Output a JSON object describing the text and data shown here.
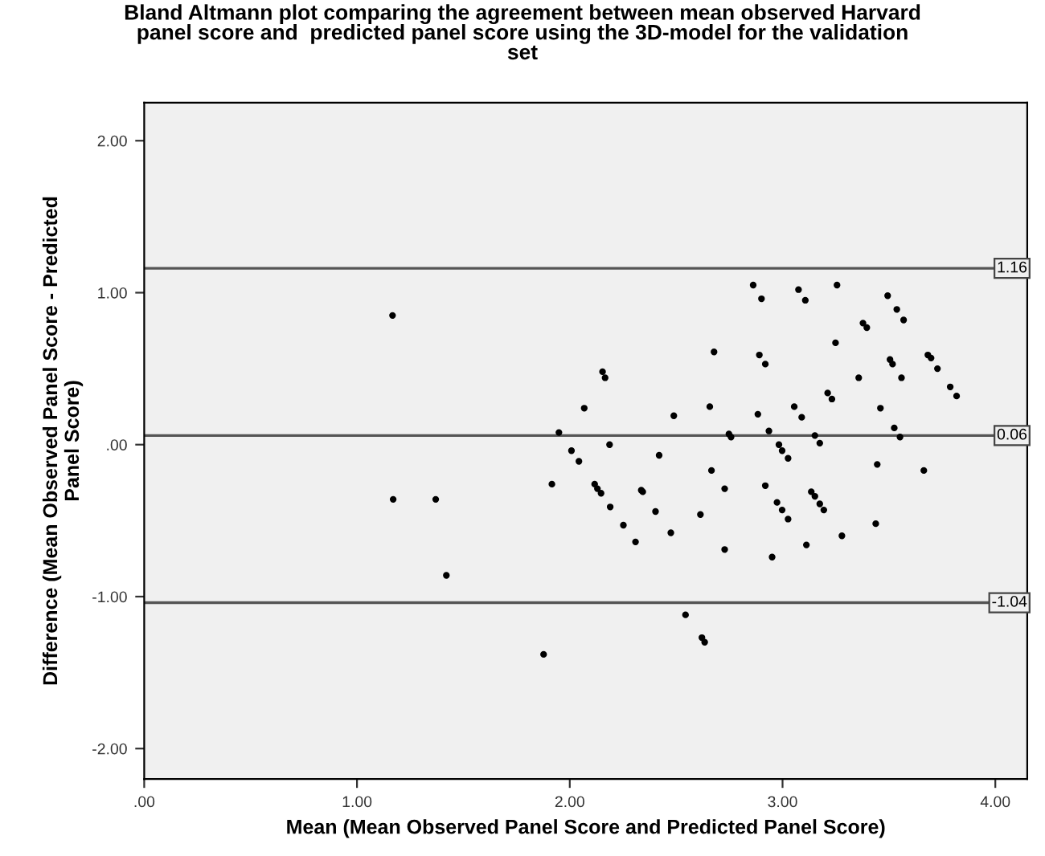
{
  "chart_data": {
    "type": "scatter",
    "title": "Bland Altmann plot comparing the agreement between mean observed Harvard\npanel score and  predicted panel score using the 3D-model for the validation\nset",
    "xlabel": "Mean (Mean Observed Panel Score and Predicted Panel Score)",
    "ylabel": "Difference (Mean Observed Panel Score - Predicted\nPanel Score)",
    "series": [
      {
        "color": "#000000",
        "x": [
          1.167,
          1.17,
          1.37,
          1.42,
          2.862,
          2.901,
          3.075,
          3.107,
          3.256,
          3.494,
          3.537,
          3.569,
          3.378,
          3.396,
          3.249,
          2.678,
          2.891,
          2.919,
          2.154,
          2.166,
          3.358,
          3.505,
          3.517,
          3.559,
          3.683,
          3.698,
          3.728,
          3.788,
          3.818,
          3.212,
          3.232,
          2.068,
          2.489,
          2.658,
          2.884,
          3.055,
          3.09,
          3.46,
          1.949,
          2.748,
          2.758,
          2.936,
          3.152,
          3.175,
          3.525,
          3.552,
          2.187,
          2.008,
          2.043,
          2.42,
          2.983,
          2.998,
          3.026,
          3.445,
          3.664,
          2.666,
          1.916,
          2.117,
          2.13,
          2.147,
          2.19,
          2.252,
          2.309,
          2.336,
          2.343,
          2.403,
          2.475,
          2.614,
          2.728,
          2.728,
          2.919,
          2.974,
          2.998,
          3.026,
          2.951,
          3.112,
          3.135,
          3.152,
          3.175,
          3.194,
          3.279,
          3.438,
          2.544,
          2.621,
          2.634,
          1.877
        ],
        "values": [
          0.85,
          -0.36,
          -0.36,
          -0.86,
          1.05,
          0.96,
          1.02,
          0.95,
          1.05,
          0.98,
          0.89,
          0.82,
          0.8,
          0.77,
          0.67,
          0.61,
          0.59,
          0.53,
          0.48,
          0.44,
          0.44,
          0.56,
          0.53,
          0.44,
          0.59,
          0.57,
          0.5,
          0.38,
          0.32,
          0.34,
          0.3,
          0.24,
          0.19,
          0.25,
          0.2,
          0.25,
          0.18,
          0.24,
          0.08,
          0.07,
          0.05,
          0.09,
          0.06,
          0.01,
          0.11,
          0.05,
          0.0,
          -0.04,
          -0.11,
          -0.07,
          0.0,
          -0.04,
          -0.09,
          -0.13,
          -0.17,
          -0.17,
          -0.26,
          -0.26,
          -0.29,
          -0.32,
          -0.41,
          -0.53,
          -0.64,
          -0.3,
          -0.31,
          -0.44,
          -0.58,
          -0.46,
          -0.29,
          -0.69,
          -0.27,
          -0.38,
          -0.43,
          -0.49,
          -0.74,
          -0.66,
          -0.31,
          -0.34,
          -0.39,
          -0.43,
          -0.6,
          -0.52,
          -1.12,
          -1.27,
          -1.3,
          -1.38
        ]
      }
    ],
    "marker": "circle",
    "xlim": [
      0,
      4.15
    ],
    "ylim": [
      -2.2,
      2.25
    ],
    "xticks": [
      {
        "value": 0,
        "label": ".00"
      },
      {
        "value": 1,
        "label": "1.00"
      },
      {
        "value": 2,
        "label": "2.00"
      },
      {
        "value": 3,
        "label": "3.00"
      },
      {
        "value": 4,
        "label": "4.00"
      }
    ],
    "yticks": [
      {
        "value": -2,
        "label": "-2.00"
      },
      {
        "value": -1,
        "label": "-1.00"
      },
      {
        "value": 0,
        "label": ".00"
      },
      {
        "value": 1,
        "label": "1.00"
      },
      {
        "value": 2,
        "label": "2.00"
      }
    ],
    "ref_lines": [
      {
        "axis": "y",
        "value": 1.16,
        "label": "1.16"
      },
      {
        "axis": "y",
        "value": 0.06,
        "label": "0.06"
      },
      {
        "axis": "y",
        "value": -1.04,
        "label": "-1.04"
      }
    ],
    "grid": false,
    "legend": false
  }
}
